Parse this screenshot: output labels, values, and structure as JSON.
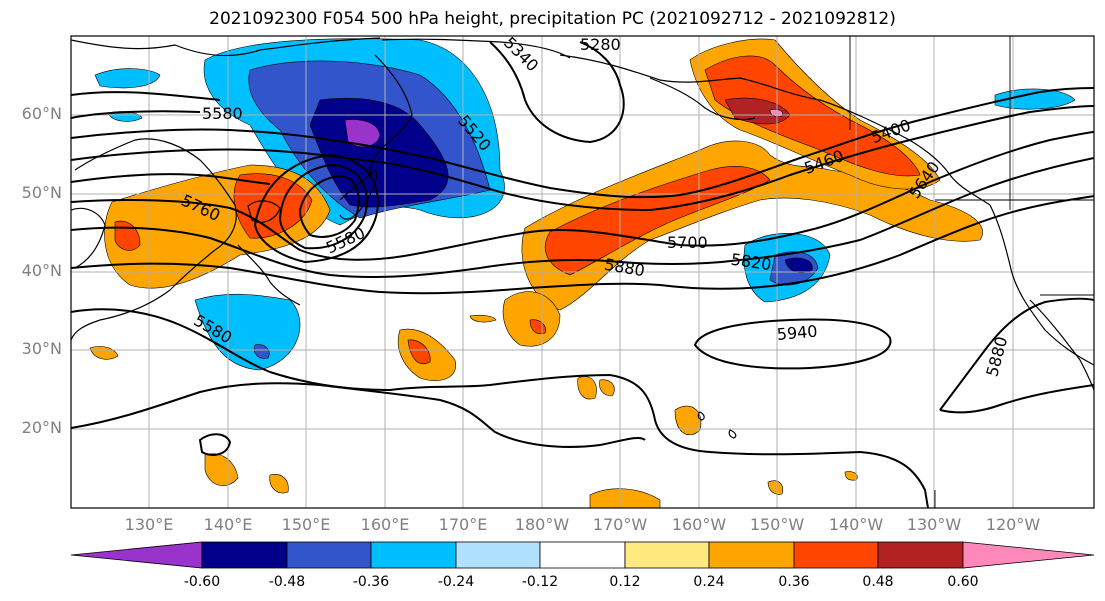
{
  "title": "2021092300 F054 500 hPa height, precipitation PC (2021092712 - 2021092812)",
  "lat_labels": [
    "60°N",
    "50°N",
    "40°N",
    "30°N",
    "20°N"
  ],
  "lon_labels": [
    "130°E",
    "140°E",
    "150°E",
    "160°E",
    "170°E",
    "180°W",
    "170°W",
    "160°W",
    "150°W",
    "140°W",
    "130°W",
    "120°W"
  ],
  "contour_labels": [
    "5280",
    "5340",
    "5520",
    "5580",
    "5580",
    "5760",
    "5580",
    "5700",
    "5820",
    "5880",
    "5880",
    "5940",
    "5880",
    "5460",
    "5400",
    "5640"
  ],
  "colorbar": {
    "tick_labels": [
      "-0.60",
      "-0.48",
      "-0.36",
      "-0.24",
      "-0.12",
      "0.12",
      "0.24",
      "0.36",
      "0.48",
      "0.60"
    ],
    "colors": [
      "#9933cc",
      "#00008b",
      "#3355cc",
      "#00bfff",
      "#b0e2ff",
      "#ffffff",
      "#ffea80",
      "#ffa500",
      "#ff4500",
      "#b22222",
      "#ff88bb"
    ]
  }
}
